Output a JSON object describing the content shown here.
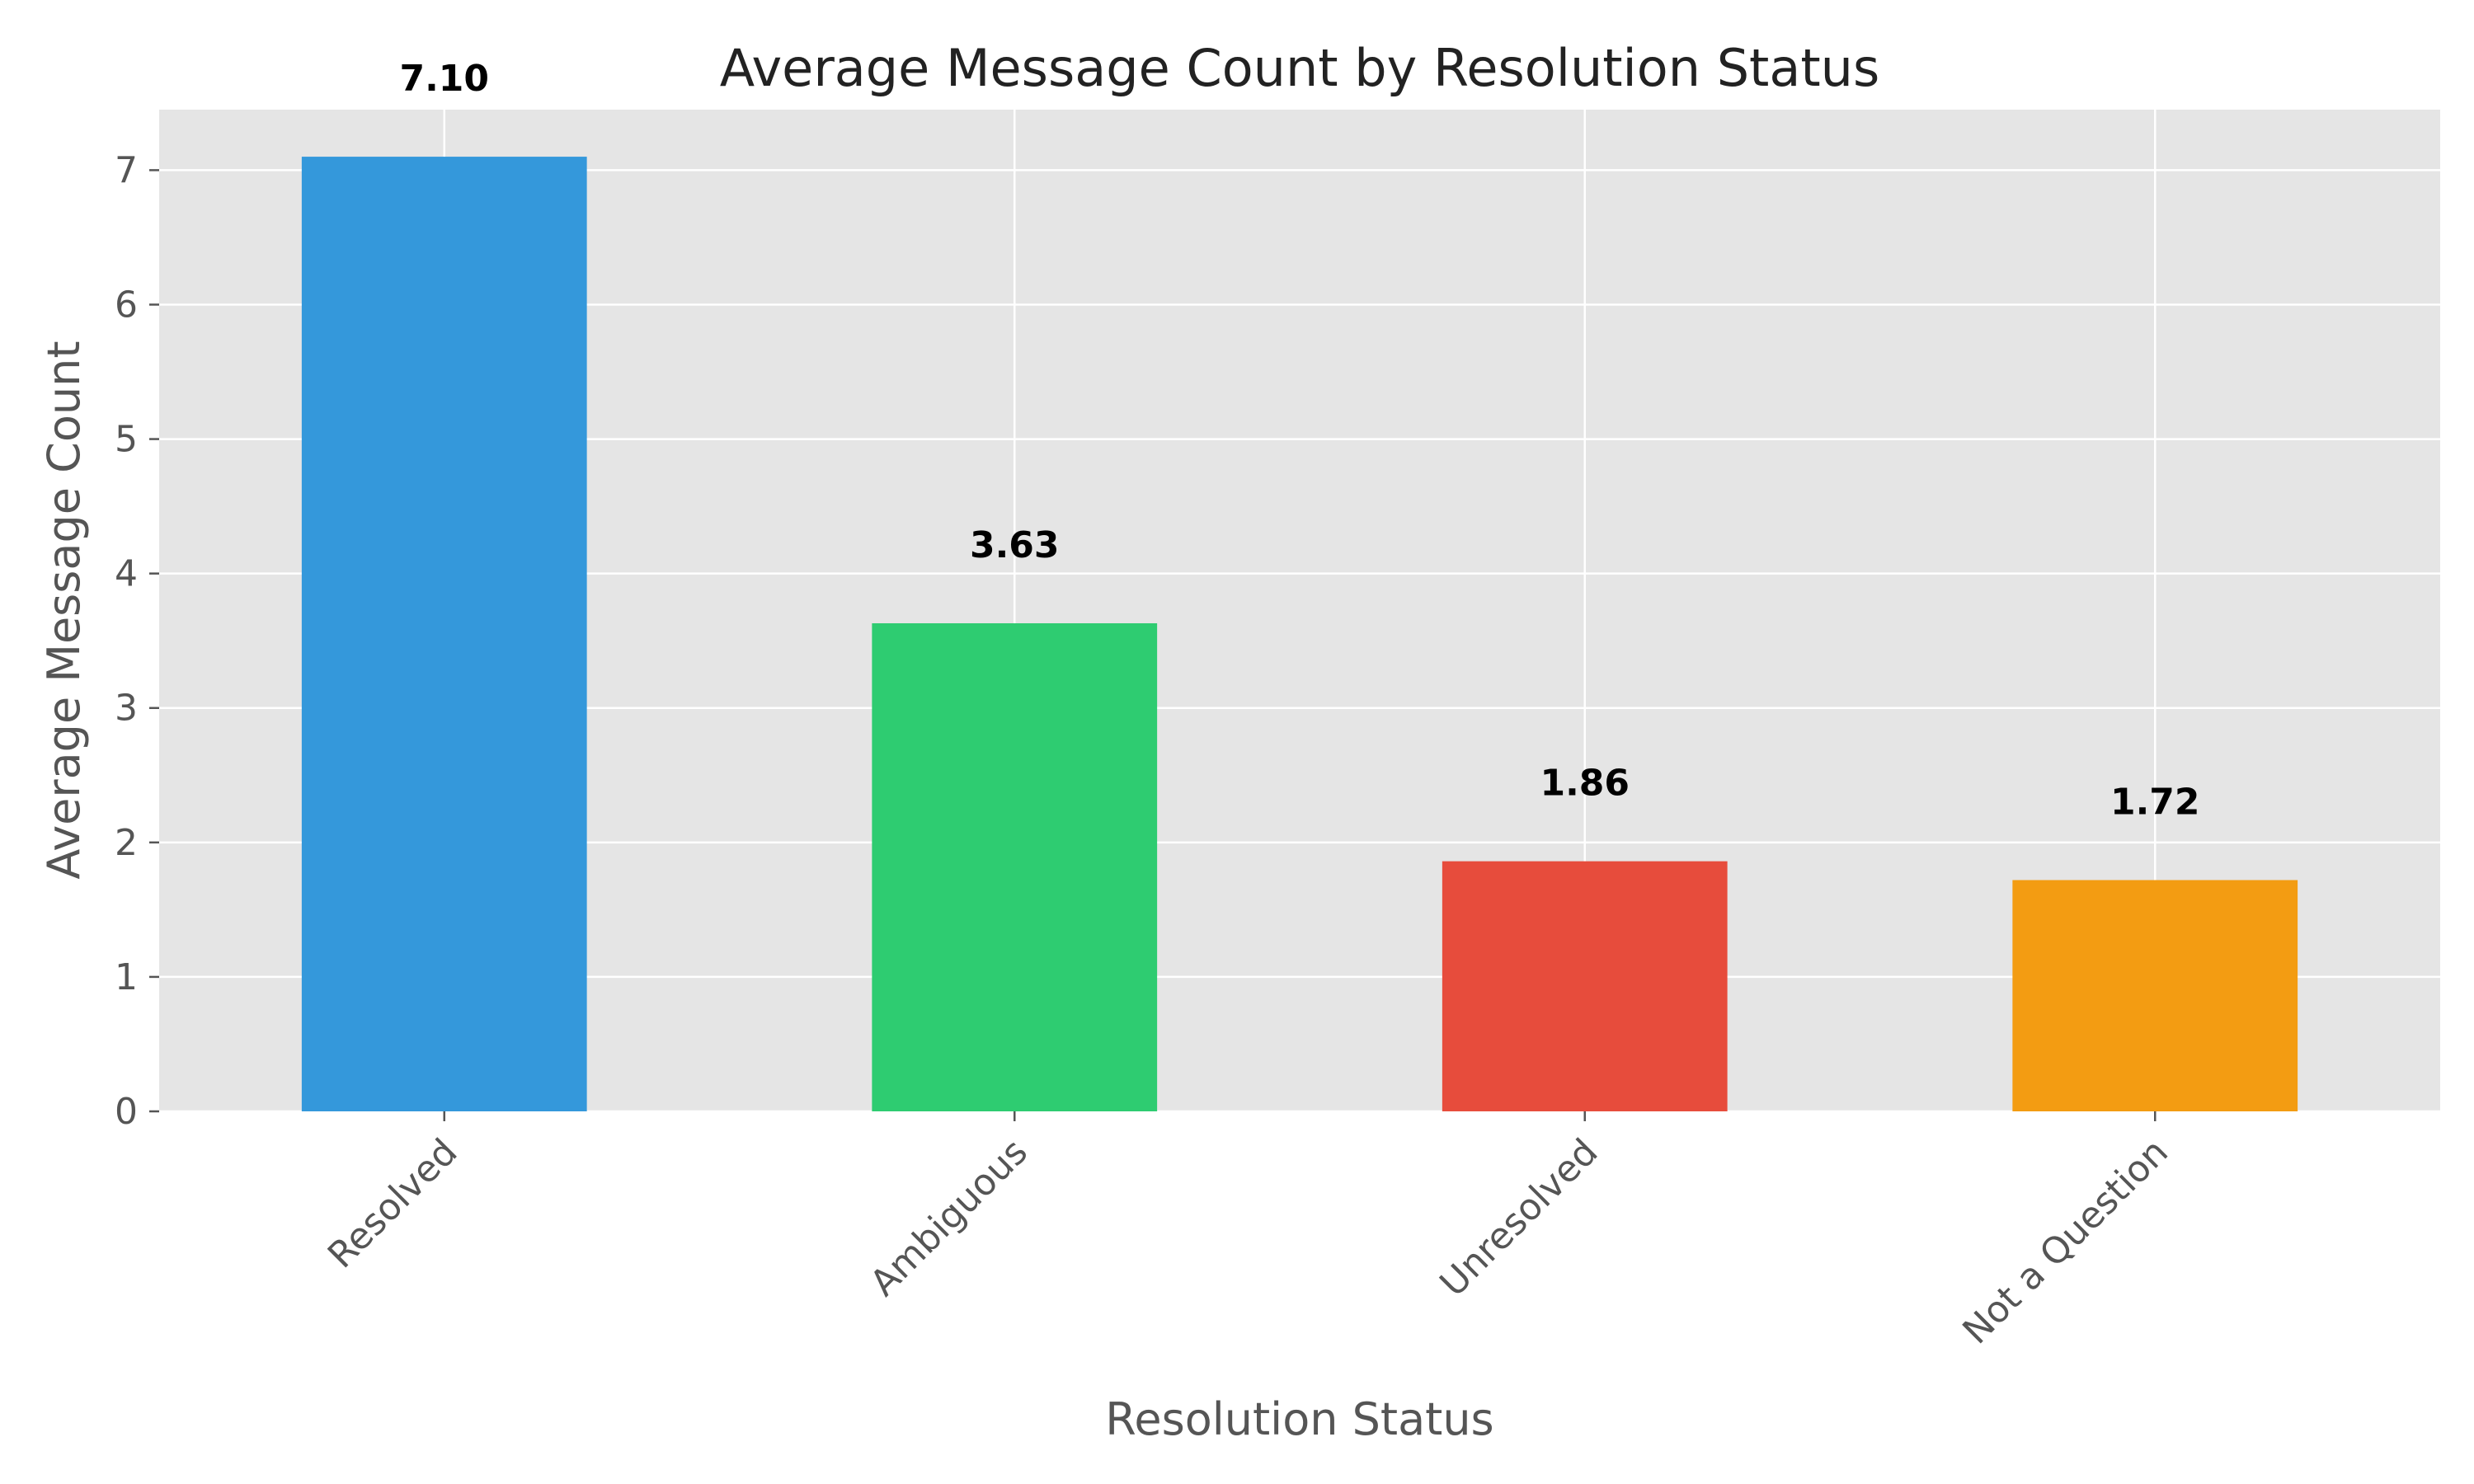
{
  "chart_data": {
    "type": "bar",
    "title": "Average Message Count by Resolution Status",
    "xlabel": "Resolution Status",
    "ylabel": "Average Message Count",
    "categories": [
      "Resolved",
      "Ambiguous",
      "Unresolved",
      "Not a Question"
    ],
    "values": [
      7.1,
      3.63,
      1.86,
      1.72
    ],
    "value_labels": [
      "7.10",
      "3.63",
      "1.86",
      "1.72"
    ],
    "colors": [
      "#3498db",
      "#2ecc71",
      "#e74c3c",
      "#f39c12"
    ],
    "ylim": [
      0,
      7.45
    ],
    "yticks": [
      0,
      1,
      2,
      3,
      4,
      5,
      6,
      7
    ],
    "grid": true,
    "plot_background": "#e5e5e5",
    "legend": "none"
  }
}
